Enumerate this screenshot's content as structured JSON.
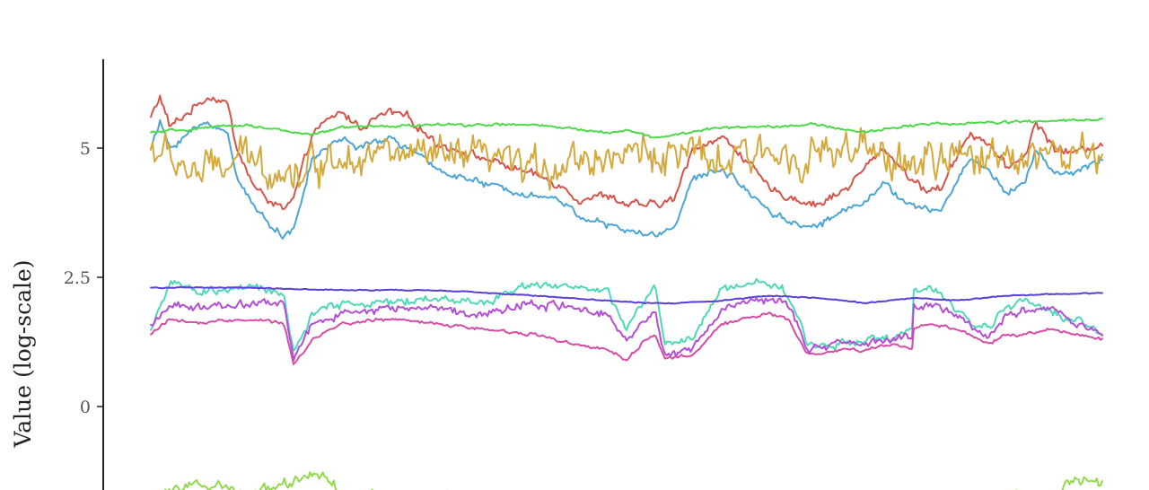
{
  "chart_data": {
    "type": "line",
    "title": "",
    "xlabel": "",
    "ylabel": "Value (log-scale)",
    "yscale": "log",
    "yticks": [
      0,
      2.5,
      5
    ],
    "ytick_labels": [
      "0",
      "2.5",
      "5"
    ],
    "ylim": [
      -1.6,
      6.2
    ],
    "xlim": [
      0,
      1
    ],
    "grid": false,
    "legend": "none",
    "series": [
      {
        "color": "#d65449",
        "keyframes": [
          [
            0.0,
            5.6
          ],
          [
            0.01,
            6.0
          ],
          [
            0.02,
            5.4
          ],
          [
            0.04,
            5.7
          ],
          [
            0.06,
            6.0
          ],
          [
            0.08,
            5.9
          ],
          [
            0.09,
            5.0
          ],
          [
            0.11,
            4.2
          ],
          [
            0.14,
            3.8
          ],
          [
            0.15,
            4.0
          ],
          [
            0.17,
            5.3
          ],
          [
            0.2,
            5.7
          ],
          [
            0.22,
            5.4
          ],
          [
            0.25,
            5.7
          ],
          [
            0.27,
            5.6
          ],
          [
            0.3,
            5.1
          ],
          [
            0.35,
            4.8
          ],
          [
            0.4,
            4.5
          ],
          [
            0.43,
            4.3
          ],
          [
            0.45,
            4.0
          ],
          [
            0.48,
            4.1
          ],
          [
            0.5,
            3.9
          ],
          [
            0.53,
            3.9
          ],
          [
            0.55,
            4.0
          ],
          [
            0.57,
            5.0
          ],
          [
            0.6,
            5.2
          ],
          [
            0.62,
            4.9
          ],
          [
            0.65,
            4.2
          ],
          [
            0.68,
            4.0
          ],
          [
            0.7,
            3.9
          ],
          [
            0.73,
            4.2
          ],
          [
            0.75,
            4.6
          ],
          [
            0.77,
            5.0
          ],
          [
            0.79,
            4.6
          ],
          [
            0.81,
            4.2
          ],
          [
            0.83,
            4.2
          ],
          [
            0.84,
            4.6
          ],
          [
            0.86,
            5.3
          ],
          [
            0.88,
            5.1
          ],
          [
            0.9,
            4.6
          ],
          [
            0.92,
            4.9
          ],
          [
            0.93,
            5.5
          ],
          [
            0.95,
            5.0
          ],
          [
            0.97,
            4.9
          ],
          [
            1.0,
            5.1
          ]
        ],
        "noise": 0.12
      },
      {
        "color": "#4ba5d6",
        "keyframes": [
          [
            0.0,
            5.0
          ],
          [
            0.01,
            5.5
          ],
          [
            0.02,
            5.0
          ],
          [
            0.04,
            5.3
          ],
          [
            0.06,
            5.5
          ],
          [
            0.08,
            5.3
          ],
          [
            0.09,
            4.5
          ],
          [
            0.11,
            3.8
          ],
          [
            0.14,
            3.3
          ],
          [
            0.15,
            3.4
          ],
          [
            0.17,
            4.8
          ],
          [
            0.2,
            5.2
          ],
          [
            0.22,
            5.0
          ],
          [
            0.25,
            5.2
          ],
          [
            0.27,
            5.0
          ],
          [
            0.3,
            4.6
          ],
          [
            0.35,
            4.3
          ],
          [
            0.4,
            4.1
          ],
          [
            0.43,
            4.0
          ],
          [
            0.45,
            3.7
          ],
          [
            0.48,
            3.5
          ],
          [
            0.5,
            3.4
          ],
          [
            0.53,
            3.3
          ],
          [
            0.55,
            3.5
          ],
          [
            0.57,
            4.4
          ],
          [
            0.6,
            4.6
          ],
          [
            0.62,
            4.3
          ],
          [
            0.65,
            3.8
          ],
          [
            0.68,
            3.5
          ],
          [
            0.7,
            3.5
          ],
          [
            0.73,
            3.8
          ],
          [
            0.75,
            4.0
          ],
          [
            0.77,
            4.3
          ],
          [
            0.79,
            4.0
          ],
          [
            0.81,
            3.8
          ],
          [
            0.83,
            3.8
          ],
          [
            0.84,
            4.1
          ],
          [
            0.86,
            4.8
          ],
          [
            0.88,
            4.6
          ],
          [
            0.9,
            4.1
          ],
          [
            0.92,
            4.4
          ],
          [
            0.93,
            5.0
          ],
          [
            0.95,
            4.5
          ],
          [
            0.97,
            4.5
          ],
          [
            1.0,
            4.8
          ]
        ],
        "noise": 0.1
      },
      {
        "color": "#d4a93d",
        "keyframes": [
          [
            0.0,
            5.0
          ],
          [
            0.05,
            4.5
          ],
          [
            0.1,
            4.8
          ],
          [
            0.15,
            4.5
          ],
          [
            0.2,
            4.9
          ],
          [
            0.25,
            4.9
          ],
          [
            0.3,
            4.8
          ],
          [
            0.35,
            4.8
          ],
          [
            0.4,
            4.6
          ],
          [
            0.45,
            4.8
          ],
          [
            0.5,
            4.9
          ],
          [
            0.55,
            4.9
          ],
          [
            0.6,
            4.7
          ],
          [
            0.65,
            4.9
          ],
          [
            0.7,
            4.9
          ],
          [
            0.75,
            4.9
          ],
          [
            0.8,
            4.7
          ],
          [
            0.85,
            4.8
          ],
          [
            0.9,
            4.9
          ],
          [
            0.95,
            4.9
          ],
          [
            1.0,
            4.8
          ]
        ],
        "noise": 0.55
      },
      {
        "color": "#4dd949",
        "keyframes": [
          [
            0.0,
            5.3
          ],
          [
            0.1,
            5.45
          ],
          [
            0.17,
            5.25
          ],
          [
            0.2,
            5.4
          ],
          [
            0.3,
            5.45
          ],
          [
            0.4,
            5.45
          ],
          [
            0.48,
            5.3
          ],
          [
            0.5,
            5.35
          ],
          [
            0.53,
            5.2
          ],
          [
            0.6,
            5.4
          ],
          [
            0.7,
            5.45
          ],
          [
            0.75,
            5.3
          ],
          [
            0.8,
            5.45
          ],
          [
            0.9,
            5.5
          ],
          [
            1.0,
            5.55
          ]
        ],
        "noise": 0.04
      },
      {
        "color": "#4dd9b8",
        "keyframes": [
          [
            0.0,
            1.5
          ],
          [
            0.02,
            2.4
          ],
          [
            0.05,
            2.2
          ],
          [
            0.1,
            2.3
          ],
          [
            0.14,
            2.2
          ],
          [
            0.15,
            1.0
          ],
          [
            0.17,
            1.8
          ],
          [
            0.2,
            2.0
          ],
          [
            0.25,
            2.0
          ],
          [
            0.3,
            2.1
          ],
          [
            0.35,
            2.0
          ],
          [
            0.4,
            2.4
          ],
          [
            0.45,
            2.3
          ],
          [
            0.48,
            2.2
          ],
          [
            0.5,
            1.5
          ],
          [
            0.52,
            2.1
          ],
          [
            0.53,
            2.3
          ],
          [
            0.54,
            1.2
          ],
          [
            0.57,
            1.3
          ],
          [
            0.6,
            2.3
          ],
          [
            0.65,
            2.4
          ],
          [
            0.67,
            2.2
          ],
          [
            0.69,
            1.2
          ],
          [
            0.72,
            1.2
          ],
          [
            0.75,
            1.3
          ],
          [
            0.78,
            1.3
          ],
          [
            0.8,
            1.5
          ],
          [
            0.8,
            2.2
          ],
          [
            0.82,
            2.3
          ],
          [
            0.85,
            1.8
          ],
          [
            0.88,
            1.5
          ],
          [
            0.9,
            2.0
          ],
          [
            0.92,
            2.0
          ],
          [
            0.95,
            1.8
          ],
          [
            0.97,
            1.7
          ],
          [
            1.0,
            1.4
          ]
        ],
        "noise": 0.12
      },
      {
        "color": "#5a3fd6",
        "keyframes": [
          [
            0.0,
            2.3
          ],
          [
            0.1,
            2.3
          ],
          [
            0.2,
            2.25
          ],
          [
            0.3,
            2.25
          ],
          [
            0.4,
            2.15
          ],
          [
            0.48,
            2.05
          ],
          [
            0.52,
            2.0
          ],
          [
            0.55,
            2.0
          ],
          [
            0.6,
            2.05
          ],
          [
            0.65,
            2.15
          ],
          [
            0.7,
            2.1
          ],
          [
            0.75,
            2.0
          ],
          [
            0.8,
            2.1
          ],
          [
            0.85,
            2.05
          ],
          [
            0.9,
            2.15
          ],
          [
            1.0,
            2.2
          ]
        ],
        "noise": 0.015
      },
      {
        "color": "#b44ed6",
        "keyframes": [
          [
            0.0,
            1.5
          ],
          [
            0.02,
            2.0
          ],
          [
            0.05,
            1.9
          ],
          [
            0.1,
            2.0
          ],
          [
            0.14,
            2.0
          ],
          [
            0.15,
            0.9
          ],
          [
            0.17,
            1.6
          ],
          [
            0.2,
            1.8
          ],
          [
            0.25,
            1.9
          ],
          [
            0.3,
            1.9
          ],
          [
            0.35,
            1.8
          ],
          [
            0.4,
            2.0
          ],
          [
            0.45,
            1.9
          ],
          [
            0.48,
            1.8
          ],
          [
            0.5,
            1.3
          ],
          [
            0.52,
            1.7
          ],
          [
            0.53,
            1.9
          ],
          [
            0.54,
            1.0
          ],
          [
            0.57,
            1.1
          ],
          [
            0.6,
            1.9
          ],
          [
            0.65,
            2.1
          ],
          [
            0.67,
            2.0
          ],
          [
            0.69,
            1.1
          ],
          [
            0.72,
            1.2
          ],
          [
            0.75,
            1.2
          ],
          [
            0.78,
            1.3
          ],
          [
            0.8,
            1.3
          ],
          [
            0.8,
            1.9
          ],
          [
            0.82,
            2.0
          ],
          [
            0.85,
            1.7
          ],
          [
            0.88,
            1.3
          ],
          [
            0.9,
            1.8
          ],
          [
            0.92,
            1.8
          ],
          [
            0.95,
            1.9
          ],
          [
            0.97,
            1.6
          ],
          [
            1.0,
            1.4
          ]
        ],
        "noise": 0.12
      },
      {
        "color": "#d64ca6",
        "keyframes": [
          [
            0.0,
            1.4
          ],
          [
            0.02,
            1.7
          ],
          [
            0.05,
            1.6
          ],
          [
            0.1,
            1.7
          ],
          [
            0.14,
            1.6
          ],
          [
            0.15,
            0.8
          ],
          [
            0.17,
            1.3
          ],
          [
            0.2,
            1.6
          ],
          [
            0.25,
            1.7
          ],
          [
            0.3,
            1.6
          ],
          [
            0.35,
            1.5
          ],
          [
            0.4,
            1.4
          ],
          [
            0.45,
            1.2
          ],
          [
            0.48,
            1.1
          ],
          [
            0.5,
            0.9
          ],
          [
            0.52,
            1.3
          ],
          [
            0.53,
            1.4
          ],
          [
            0.54,
            0.9
          ],
          [
            0.57,
            1.0
          ],
          [
            0.6,
            1.6
          ],
          [
            0.65,
            1.8
          ],
          [
            0.67,
            1.7
          ],
          [
            0.69,
            1.0
          ],
          [
            0.72,
            1.1
          ],
          [
            0.75,
            1.1
          ],
          [
            0.78,
            1.2
          ],
          [
            0.8,
            1.1
          ],
          [
            0.8,
            1.5
          ],
          [
            0.82,
            1.6
          ],
          [
            0.85,
            1.5
          ],
          [
            0.88,
            1.2
          ],
          [
            0.9,
            1.4
          ],
          [
            0.92,
            1.4
          ],
          [
            0.95,
            1.5
          ],
          [
            0.97,
            1.4
          ],
          [
            1.0,
            1.3
          ]
        ],
        "noise": 0.05
      },
      {
        "color": "#93d94d",
        "keyframes": [
          [
            0.0,
            -1.7
          ],
          [
            0.05,
            -1.5
          ],
          [
            0.1,
            -1.7
          ],
          [
            0.18,
            -1.3
          ],
          [
            0.2,
            -1.7
          ],
          [
            0.3,
            -1.75
          ],
          [
            0.4,
            -1.75
          ],
          [
            0.5,
            -1.75
          ],
          [
            0.6,
            -1.75
          ],
          [
            0.7,
            -1.75
          ],
          [
            0.8,
            -1.75
          ],
          [
            0.95,
            -1.75
          ],
          [
            0.97,
            -1.4
          ],
          [
            1.0,
            -1.5
          ]
        ],
        "noise": 0.15
      }
    ]
  }
}
